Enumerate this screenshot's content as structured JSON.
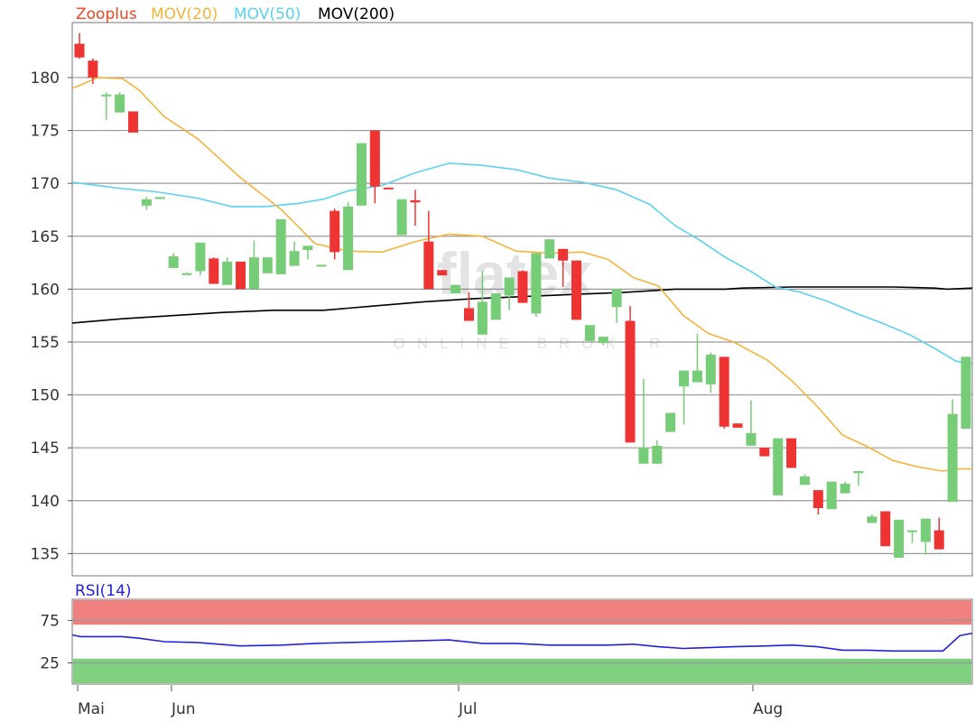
{
  "watermark": {
    "brand": "flatex",
    "tagline": "ONLINE BROKER"
  },
  "colors": {
    "up": "#77cc77",
    "down": "#ee3333",
    "mov20": "#f5b43c",
    "mov50": "#5bd2f0",
    "mov200": "#000000",
    "rsi": "#2222dd",
    "zoo": "#ee4422",
    "overbought": "#f08080",
    "oversold": "#7fd07f",
    "grid": "#999999"
  },
  "chart_data": [
    {
      "type": "candlestick",
      "legend": [
        "Zooplus",
        "MOV(20)",
        "MOV(50)",
        "MOV(200)"
      ],
      "y_ticks": [
        "180",
        "175",
        "170",
        "165",
        "160",
        "155",
        "150",
        "145",
        "140",
        "135"
      ],
      "x_tick_labels": [
        "Mai",
        "Jun",
        "Jul",
        "Aug"
      ],
      "ylim": [
        132.9,
        185.2
      ],
      "candles": [
        [
          183.2,
          184.2,
          181.8,
          181.9
        ],
        [
          181.6,
          181.8,
          179.4,
          180.0
        ],
        [
          178.4,
          178.6,
          176.0,
          178.4
        ],
        [
          176.7,
          178.6,
          176.7,
          178.4
        ],
        [
          176.8,
          176.8,
          174.8,
          174.8
        ],
        [
          167.9,
          168.7,
          167.5,
          168.5
        ],
        [
          168.7,
          168.7,
          168.5,
          168.7
        ],
        [
          162.0,
          163.4,
          162.0,
          163.1
        ],
        [
          161.5,
          161.6,
          161.5,
          161.5
        ],
        [
          161.7,
          164.4,
          161.3,
          164.4
        ],
        [
          162.9,
          163.0,
          160.5,
          160.5
        ],
        [
          160.4,
          163.0,
          160.4,
          162.6
        ],
        [
          162.6,
          162.6,
          160.0,
          160.0
        ],
        [
          160.0,
          164.6,
          160.0,
          163.0
        ],
        [
          161.5,
          162.9,
          161.5,
          163.0
        ],
        [
          161.4,
          166.6,
          161.4,
          166.6
        ],
        [
          162.2,
          164.5,
          162.2,
          163.6
        ],
        [
          163.7,
          164.1,
          162.8,
          164.1
        ],
        [
          162.3,
          162.3,
          162.3,
          162.3
        ],
        [
          167.4,
          167.6,
          162.8,
          163.5
        ],
        [
          161.8,
          168.2,
          161.8,
          167.8
        ],
        [
          167.9,
          173.8,
          167.9,
          173.8
        ],
        [
          175.0,
          175.0,
          168.1,
          169.7
        ],
        [
          169.6,
          169.6,
          169.5,
          169.5
        ],
        [
          165.1,
          168.5,
          165.1,
          168.5
        ],
        [
          168.4,
          169.4,
          166.0,
          168.2
        ],
        [
          164.5,
          167.4,
          160.0,
          160.0
        ],
        [
          161.8,
          161.8,
          161.3,
          161.3
        ],
        [
          159.6,
          160.4,
          159.6,
          160.4
        ],
        [
          158.2,
          159.7,
          157.0,
          157.0
        ],
        [
          155.7,
          161.7,
          155.7,
          158.8
        ],
        [
          157.1,
          159.6,
          157.1,
          159.6
        ],
        [
          159.4,
          161.1,
          158.0,
          161.1
        ],
        [
          161.7,
          161.8,
          158.7,
          158.7
        ],
        [
          157.7,
          163.4,
          157.4,
          163.4
        ],
        [
          162.9,
          164.7,
          162.9,
          164.7
        ],
        [
          163.8,
          163.8,
          160.2,
          162.7
        ],
        [
          162.7,
          162.7,
          157.1,
          157.1
        ],
        [
          155.1,
          156.6,
          155.1,
          156.6
        ],
        [
          154.9,
          155.5,
          154.7,
          155.5
        ],
        [
          158.3,
          160.0,
          156.8,
          160.0
        ],
        [
          157.0,
          158.4,
          145.5,
          145.5
        ],
        [
          143.5,
          151.5,
          143.5,
          145.0
        ],
        [
          143.5,
          145.7,
          143.5,
          145.2
        ],
        [
          146.5,
          148.3,
          146.5,
          148.3
        ],
        [
          150.8,
          152.3,
          147.2,
          152.3
        ],
        [
          151.2,
          155.8,
          151.2,
          152.3
        ],
        [
          151.0,
          154.0,
          150.2,
          153.8
        ],
        [
          153.6,
          153.6,
          146.8,
          147.0
        ],
        [
          147.3,
          147.3,
          146.9,
          146.9
        ],
        [
          145.2,
          149.5,
          145.2,
          146.4
        ],
        [
          145.0,
          145.0,
          144.2,
          144.2
        ],
        [
          140.5,
          145.9,
          140.5,
          145.9
        ],
        [
          145.9,
          145.9,
          143.1,
          143.1
        ],
        [
          141.5,
          142.5,
          141.5,
          142.3
        ],
        [
          141.0,
          141.0,
          138.7,
          139.3
        ],
        [
          139.2,
          141.5,
          139.2,
          141.8
        ],
        [
          140.7,
          141.8,
          140.7,
          141.6
        ],
        [
          142.6,
          142.6,
          141.4,
          142.8
        ],
        [
          137.9,
          138.7,
          137.9,
          138.5
        ],
        [
          139.0,
          139.0,
          135.7,
          135.7
        ],
        [
          134.6,
          138.2,
          134.6,
          138.2
        ],
        [
          137.2,
          137.2,
          136.0,
          137.2
        ],
        [
          136.1,
          138.3,
          134.9,
          138.3
        ],
        [
          137.2,
          138.4,
          135.4,
          135.4
        ],
        [
          139.9,
          149.6,
          139.9,
          148.2
        ],
        [
          146.8,
          153.6,
          146.8,
          153.6
        ]
      ],
      "mov20": [
        [
          0,
          179.0
        ],
        [
          10,
          179.3
        ],
        [
          30,
          180.0
        ],
        [
          60,
          179.9
        ],
        [
          80,
          178.8
        ],
        [
          110,
          176.3
        ],
        [
          150,
          174.2
        ],
        [
          200,
          170.6
        ],
        [
          250,
          167.5
        ],
        [
          290,
          164.3
        ],
        [
          330,
          163.6
        ],
        [
          370,
          163.5
        ],
        [
          410,
          164.5
        ],
        [
          450,
          165.2
        ],
        [
          490,
          165.0
        ],
        [
          530,
          163.6
        ],
        [
          570,
          163.4
        ],
        [
          610,
          163.5
        ],
        [
          640,
          162.8
        ],
        [
          670,
          161.1
        ],
        [
          700,
          160.3
        ],
        [
          730,
          157.5
        ],
        [
          760,
          155.8
        ],
        [
          790,
          155.0
        ],
        [
          830,
          153.3
        ],
        [
          860,
          151.3
        ],
        [
          890,
          148.9
        ],
        [
          920,
          146.2
        ],
        [
          950,
          145.1
        ],
        [
          980,
          143.8
        ],
        [
          1010,
          143.2
        ],
        [
          1040,
          142.8
        ],
        [
          1060,
          143.0
        ],
        [
          1075,
          143.0
        ]
      ],
      "mov50": [
        [
          0,
          170.1
        ],
        [
          60,
          169.5
        ],
        [
          100,
          169.2
        ],
        [
          150,
          168.6
        ],
        [
          190,
          167.8
        ],
        [
          230,
          167.8
        ],
        [
          270,
          168.1
        ],
        [
          300,
          168.5
        ],
        [
          330,
          169.3
        ],
        [
          370,
          169.8
        ],
        [
          410,
          171.0
        ],
        [
          450,
          171.9
        ],
        [
          490,
          171.7
        ],
        [
          530,
          171.3
        ],
        [
          570,
          170.5
        ],
        [
          610,
          170.1
        ],
        [
          650,
          169.4
        ],
        [
          690,
          168.0
        ],
        [
          720,
          166.0
        ],
        [
          750,
          164.6
        ],
        [
          780,
          163.0
        ],
        [
          810,
          161.7
        ],
        [
          840,
          160.2
        ],
        [
          870,
          159.7
        ],
        [
          900,
          158.9
        ],
        [
          940,
          157.6
        ],
        [
          970,
          156.7
        ],
        [
          1000,
          155.7
        ],
        [
          1030,
          154.4
        ],
        [
          1055,
          153.2
        ],
        [
          1075,
          153.0
        ]
      ],
      "mov200": [
        [
          0,
          156.8
        ],
        [
          60,
          157.2
        ],
        [
          120,
          157.5
        ],
        [
          180,
          157.8
        ],
        [
          240,
          158.0
        ],
        [
          300,
          158.0
        ],
        [
          360,
          158.4
        ],
        [
          420,
          158.8
        ],
        [
          480,
          159.1
        ],
        [
          540,
          159.3
        ],
        [
          600,
          159.5
        ],
        [
          660,
          159.7
        ],
        [
          720,
          160.0
        ],
        [
          780,
          160.0
        ],
        [
          800,
          160.1
        ],
        [
          860,
          160.2
        ],
        [
          920,
          160.2
        ],
        [
          980,
          160.2
        ],
        [
          1030,
          160.1
        ],
        [
          1045,
          160.0
        ],
        [
          1075,
          160.1
        ]
      ]
    },
    {
      "type": "line",
      "legend": [
        "RSI(14)"
      ],
      "y_ticks": [
        "75",
        "25"
      ],
      "ylim": [
        0,
        100
      ],
      "bands": {
        "overbought": [
          70,
          100
        ],
        "oversold": [
          0,
          30
        ]
      },
      "rsi": [
        [
          0,
          58.0
        ],
        [
          10,
          56.0
        ],
        [
          30,
          56.0
        ],
        [
          60,
          56.0
        ],
        [
          80,
          54.0
        ],
        [
          110,
          50.0
        ],
        [
          150,
          49.0
        ],
        [
          200,
          45.0
        ],
        [
          250,
          46.0
        ],
        [
          290,
          48.0
        ],
        [
          330,
          49.0
        ],
        [
          370,
          50.0
        ],
        [
          410,
          51.0
        ],
        [
          450,
          52.0
        ],
        [
          490,
          48.0
        ],
        [
          530,
          48.0
        ],
        [
          570,
          46.0
        ],
        [
          610,
          46.0
        ],
        [
          640,
          46.0
        ],
        [
          670,
          47.0
        ],
        [
          700,
          44.0
        ],
        [
          730,
          42.0
        ],
        [
          760,
          43.0
        ],
        [
          790,
          44.0
        ],
        [
          830,
          45.0
        ],
        [
          860,
          46.0
        ],
        [
          890,
          44.0
        ],
        [
          920,
          40.0
        ],
        [
          950,
          40.0
        ],
        [
          980,
          39.0
        ],
        [
          1010,
          39.0
        ],
        [
          1040,
          39.0
        ],
        [
          1060,
          57.0
        ],
        [
          1075,
          60.0
        ]
      ]
    }
  ]
}
